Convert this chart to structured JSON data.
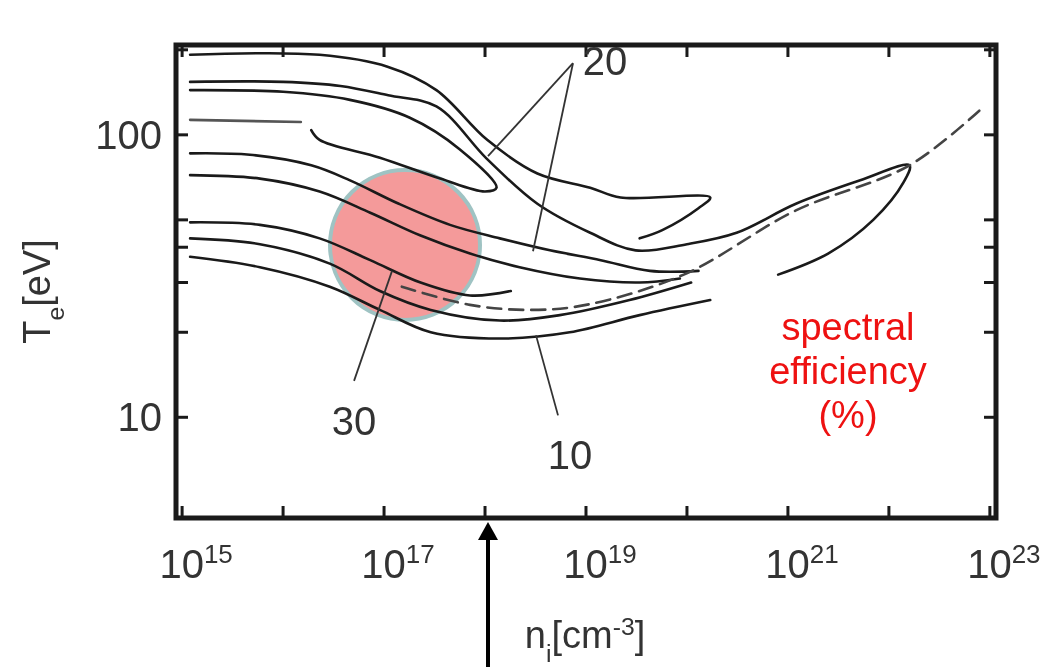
{
  "chart_data": {
    "type": "line",
    "xlabel": "n$_{i}$[cm$^{-3}$]",
    "ylabel": "T$_{e}$[eV]",
    "log": "xy",
    "grid": false,
    "marker": "none",
    "line_style": "solid",
    "xlim": [
      870000000000000.0,
      1.15e+23
    ],
    "ylim": [
      4.4,
      208
    ],
    "xticks": [
      {
        "value": 1000000000000000.0,
        "label": "10$^{15}$"
      },
      {
        "value": 1e+16,
        "label": null
      },
      {
        "value": 1e+17,
        "label": "10$^{17}$"
      },
      {
        "value": 1e+18,
        "label": null
      },
      {
        "value": 1e+19,
        "label": "10$^{19}$"
      },
      {
        "value": 1e+20,
        "label": null
      },
      {
        "value": 1e+21,
        "label": "10$^{21}$"
      },
      {
        "value": 1e+22,
        "label": null
      },
      {
        "value": 1e+23,
        "label": "10$^{23}$"
      }
    ],
    "yticks": [
      10,
      {
        "value": 20,
        "label": null
      },
      {
        "value": 30,
        "label": null
      },
      {
        "value": 40,
        "label": null
      },
      {
        "value": 50,
        "label": null
      },
      100,
      {
        "value": 200,
        "label": null
      }
    ],
    "annotations": [
      {
        "text": "20",
        "x": 1.07e+18,
        "y": 84
      },
      {
        "text": "30",
        "x": 1.2e+17,
        "y": 33
      },
      {
        "text": "10",
        "x": 3.2e+18,
        "y": 19.5
      },
      "spectral efficiency (%)"
    ],
    "series": [
      {
        "color": "#1a1a1a",
        "x": [
          1200000000000000.0,
          2.3e+16,
          1.1e+17,
          3.3e+17,
          1.05e+18,
          3.3e+18,
          1.1e+19,
          2.2e+19,
          1.7e+20,
          1.3e+20,
          5.7e+19,
          3.4e+19
        ],
        "values": [
          192,
          192,
          174,
          144,
          96,
          73,
          65,
          60,
          60,
          55,
          46,
          43
        ]
      },
      {
        "color": "#1a1a1a",
        "x": [
          1200000000000000.0,
          1e+16,
          3.7e+16,
          1.1e+17,
          3.3e+17,
          1.05e+18,
          3.3e+18,
          1.1e+19,
          3.1e+19,
          1e+20,
          3.1e+20,
          1.2e+21,
          5.2e+21,
          1.6e+22,
          1.4e+22,
          7e+21,
          2.5e+21,
          8e+20
        ],
        "values": [
          154,
          154,
          149,
          138,
          126,
          82,
          57,
          45,
          39,
          41,
          45,
          57,
          69,
          78,
          68,
          50,
          38,
          32
        ]
      },
      {
        "color": "#1a1a1a",
        "x": [
          1200000000000000.0,
          1e+16,
          4.6e+16,
          1.8e+17,
          5.6e+17,
          1.3e+18,
          1e+18,
          3.6e+17,
          9.1e+16,
          2.3e+16,
          1.9e+16
        ],
        "values": [
          144,
          142,
          133,
          115,
          89,
          65,
          63,
          70,
          83,
          96,
          104
        ]
      },
      {
        "color": "#555555",
        "x": [
          1200000000000000.0,
          1.5e+16
        ],
        "values": [
          113,
          111
        ]
      },
      {
        "color": "#1a1a1a",
        "x": [
          1200000000000000.0,
          4700000000000000.0,
          1.9e+16,
          4.6e+16,
          1.4e+17,
          4.5e+17,
          1.4e+18,
          4.4e+18,
          1.4e+19,
          4.3e+19,
          1.3e+20
        ],
        "values": [
          86,
          85,
          78,
          69,
          57,
          48,
          43,
          39,
          36,
          33,
          33
        ]
      },
      {
        "color": "#1a1a1a",
        "x": [
          1200000000000000.0,
          5900000000000000.0,
          2.3e+16,
          7.3e+16,
          2.3e+17,
          7.1e+17,
          2.2e+18,
          8.7e+18,
          3.4e+19,
          8.5e+19
        ],
        "values": [
          72,
          70,
          63,
          53,
          44,
          38,
          34,
          31,
          30,
          31
        ]
      },
      {
        "color": "#1a1a1a",
        "x": [
          1200000000000000.0,
          5900000000000000.0,
          2.3e+16,
          7.3e+16,
          2.3e+17,
          7.1e+17,
          1.8e+18
        ],
        "values": [
          49,
          48,
          43,
          36,
          30,
          27,
          28
        ]
      },
      {
        "color": "#1a1a1a",
        "x": [
          1200000000000000.0,
          5900000000000000.0,
          2.9e+16,
          9.1e+16,
          2.9e+17,
          1.4e+18,
          5.5e+18,
          2.7e+19,
          1.1e+20
        ],
        "values": [
          43,
          41,
          35,
          28,
          24,
          22,
          23,
          26,
          30
        ]
      },
      {
        "color": "#1a1a1a",
        "x": [
          1200000000000000.0,
          5900000000000000.0,
          2.9e+16,
          9.1e+16,
          2.9e+17,
          1.4e+18,
          6.9e+18,
          3.4e+19,
          1.7e+20
        ],
        "values": [
          37,
          34,
          29,
          24,
          20,
          19,
          20,
          23,
          26
        ]
      },
      {
        "color": "#444444",
        "line_style": "dashed",
        "x": [
          1.5e+17,
          7.1e+17,
          2.8e+18,
          1e+19,
          9.3e+19,
          1.2e+21,
          1.6e+22,
          8.3e+22
        ],
        "values": [
          29,
          25,
          24,
          25,
          32,
          54,
          78,
          124
        ]
      }
    ]
  }
}
